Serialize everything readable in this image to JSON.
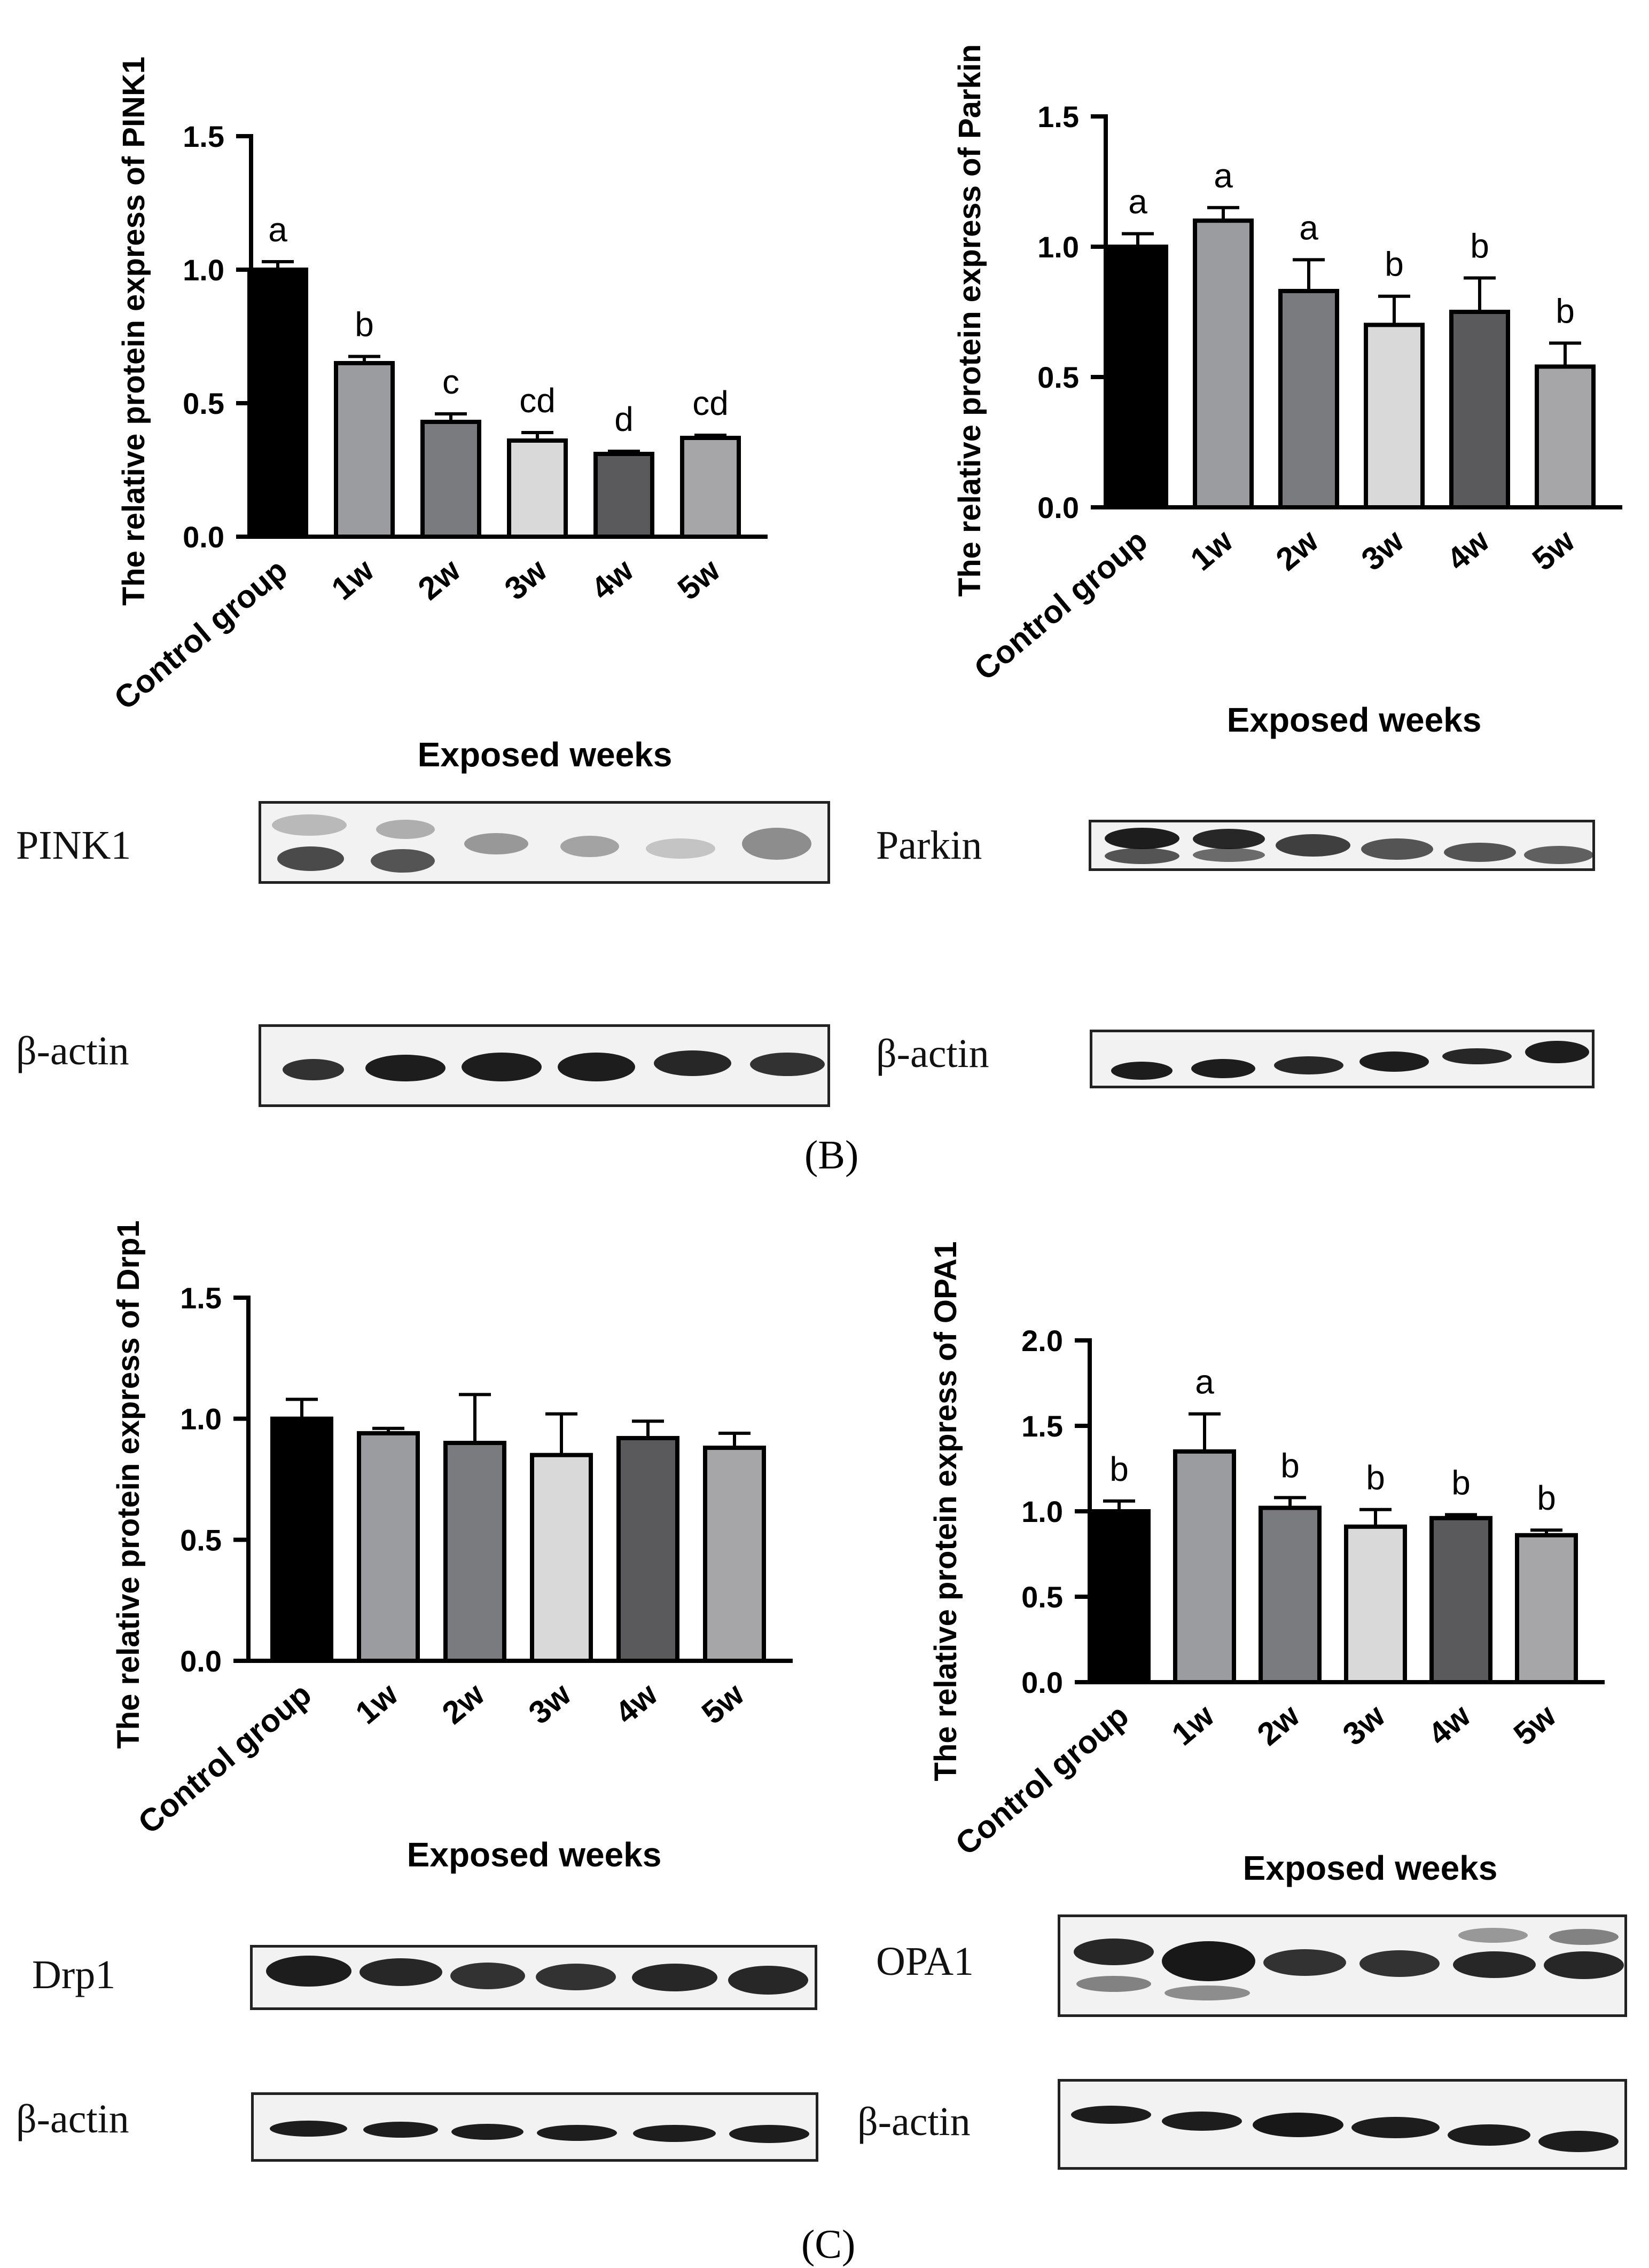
{
  "chart_data": [
    {
      "type": "bar",
      "id": "pink1",
      "categories": [
        "Control group",
        "1w",
        "2w",
        "3w",
        "4w",
        "5w"
      ],
      "values": [
        1.0,
        0.65,
        0.43,
        0.36,
        0.31,
        0.37
      ],
      "errors": [
        0.03,
        0.025,
        0.03,
        0.03,
        0.01,
        0.01
      ],
      "significance": [
        "a",
        "b",
        "c",
        "cd",
        "d",
        "cd"
      ],
      "bar_colors": [
        "#000000",
        "#9a9ca0",
        "#7a7b7e",
        "#d9d9d9",
        "#5a5a5c",
        "#a6a6a8"
      ],
      "ylabel": "The relative protein express of PINK1",
      "xlabel": "Exposed weeks",
      "ylim": [
        0,
        1.5
      ],
      "yticks": [
        "0.0",
        "0.5",
        "1.0",
        "1.5"
      ]
    },
    {
      "type": "bar",
      "id": "parkin",
      "categories": [
        "Control group",
        "1w",
        "2w",
        "3w",
        "4w",
        "5w"
      ],
      "values": [
        1.0,
        1.1,
        0.83,
        0.7,
        0.75,
        0.54
      ],
      "errors": [
        0.05,
        0.05,
        0.12,
        0.11,
        0.13,
        0.09
      ],
      "significance": [
        "a",
        "a",
        "a",
        "b",
        "b",
        "b"
      ],
      "bar_colors": [
        "#000000",
        "#9a9ca0",
        "#7a7b7e",
        "#d9d9d9",
        "#5a5a5c",
        "#a6a6a8"
      ],
      "ylabel": "The relative protein express of Parkin",
      "xlabel": "Exposed weeks",
      "ylim": [
        0,
        1.5
      ],
      "yticks": [
        "0.0",
        "0.5",
        "1.0",
        "1.5"
      ]
    },
    {
      "type": "bar",
      "id": "drp1",
      "categories": [
        "Control group",
        "1w",
        "2w",
        "3w",
        "4w",
        "5w"
      ],
      "values": [
        1.0,
        0.94,
        0.9,
        0.85,
        0.92,
        0.88
      ],
      "errors": [
        0.08,
        0.02,
        0.2,
        0.17,
        0.07,
        0.06
      ],
      "significance": [
        "",
        "",
        "",
        "",
        "",
        ""
      ],
      "bar_colors": [
        "#000000",
        "#9a9ca0",
        "#7a7b7e",
        "#d9d9d9",
        "#5a5a5c",
        "#a6a6a8"
      ],
      "ylabel": "The relative protein express of Drp1",
      "xlabel": "Exposed weeks",
      "ylim": [
        0,
        1.5
      ],
      "yticks": [
        "0.0",
        "0.5",
        "1.0",
        "1.5"
      ]
    },
    {
      "type": "bar",
      "id": "opa1",
      "categories": [
        "Control group",
        "1w",
        "2w",
        "3w",
        "4w",
        "5w"
      ],
      "values": [
        1.0,
        1.35,
        1.02,
        0.91,
        0.96,
        0.86
      ],
      "errors": [
        0.06,
        0.22,
        0.06,
        0.1,
        0.02,
        0.03
      ],
      "significance": [
        "b",
        "a",
        "b",
        "b",
        "b",
        "b"
      ],
      "bar_colors": [
        "#000000",
        "#9a9ca0",
        "#7a7b7e",
        "#d9d9d9",
        "#5a5a5c",
        "#a6a6a8"
      ],
      "ylabel": "The relative protein express of OPA1",
      "xlabel": "Exposed weeks",
      "ylim": [
        0,
        2.0
      ],
      "yticks": [
        "0.0",
        "0.5",
        "1.0",
        "1.5",
        "2.0"
      ]
    }
  ],
  "blots": {
    "pink1": "PINK1",
    "pink1_actin": "β-actin",
    "parkin": "Parkin",
    "parkin_actin": "β-actin",
    "drp1": "Drp1",
    "drp1_actin": "β-actin",
    "opa1": "OPA1",
    "opa1_actin": "β-actin"
  },
  "captions": {
    "panel_b": "(B)",
    "panel_c": "(C)"
  }
}
